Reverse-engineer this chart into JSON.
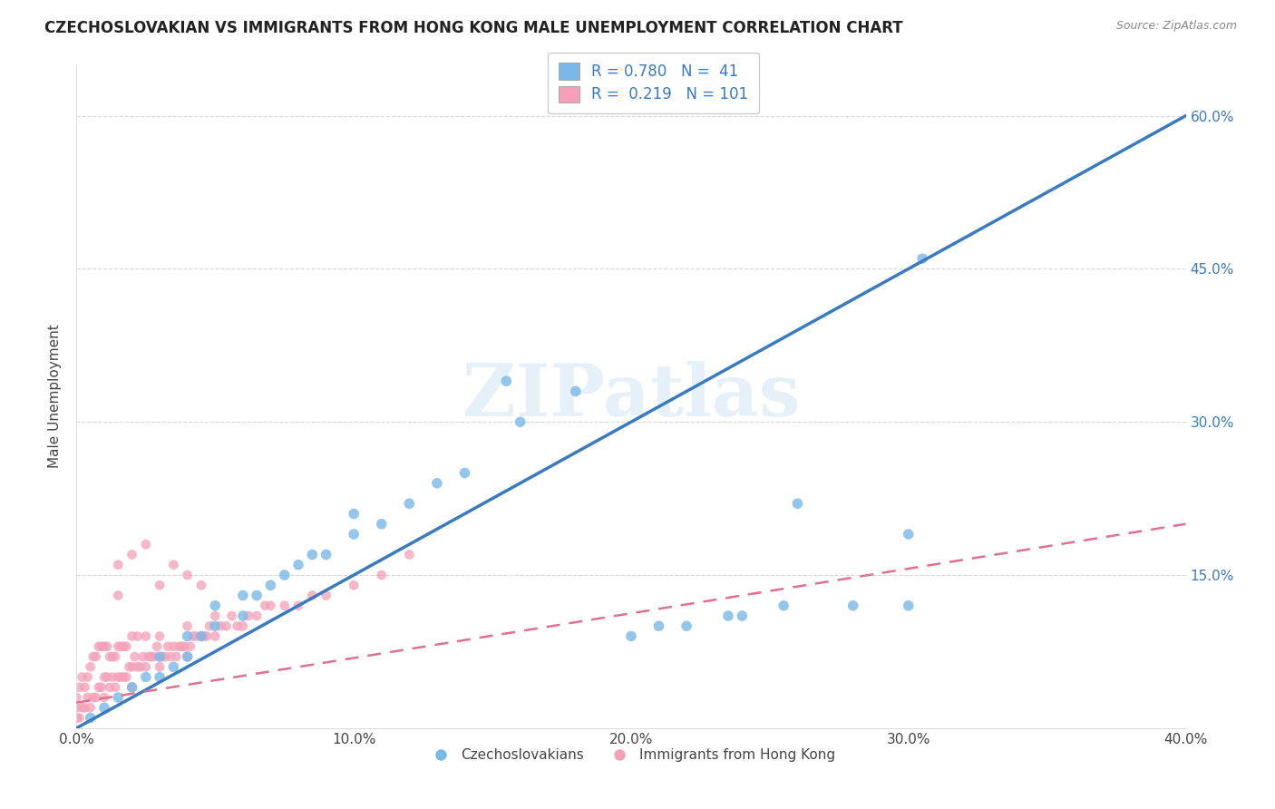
{
  "title": "CZECHOSLOVAKIAN VS IMMIGRANTS FROM HONG KONG MALE UNEMPLOYMENT CORRELATION CHART",
  "source_text": "Source: ZipAtlas.com",
  "ylabel": "Male Unemployment",
  "xlim": [
    0.0,
    0.4
  ],
  "ylim": [
    0.0,
    0.65
  ],
  "xtick_labels": [
    "0.0%",
    "10.0%",
    "20.0%",
    "30.0%",
    "40.0%"
  ],
  "xtick_vals": [
    0.0,
    0.1,
    0.2,
    0.3,
    0.4
  ],
  "ytick_labels": [
    "15.0%",
    "30.0%",
    "45.0%",
    "60.0%"
  ],
  "ytick_vals": [
    0.15,
    0.3,
    0.45,
    0.6
  ],
  "blue_color": "#7ab8e8",
  "pink_color": "#f4a0b8",
  "blue_line_color": "#3a7abf",
  "pink_line_color": "#e07090",
  "watermark": "ZIPatlas",
  "blue_line": [
    0.0,
    0.0,
    0.4,
    0.6
  ],
  "pink_line": [
    0.0,
    0.025,
    0.4,
    0.2
  ],
  "blue_scatter_x": [
    0.005,
    0.01,
    0.015,
    0.02,
    0.025,
    0.03,
    0.03,
    0.035,
    0.04,
    0.04,
    0.045,
    0.05,
    0.05,
    0.06,
    0.06,
    0.065,
    0.07,
    0.075,
    0.08,
    0.085,
    0.09,
    0.1,
    0.1,
    0.11,
    0.12,
    0.13,
    0.14,
    0.155,
    0.16,
    0.18,
    0.2,
    0.21,
    0.22,
    0.235,
    0.24,
    0.255,
    0.26,
    0.28,
    0.3,
    0.305,
    0.3
  ],
  "blue_scatter_y": [
    0.01,
    0.02,
    0.03,
    0.04,
    0.05,
    0.05,
    0.07,
    0.06,
    0.07,
    0.09,
    0.09,
    0.1,
    0.12,
    0.11,
    0.13,
    0.13,
    0.14,
    0.15,
    0.16,
    0.17,
    0.17,
    0.19,
    0.21,
    0.2,
    0.22,
    0.24,
    0.25,
    0.34,
    0.3,
    0.33,
    0.09,
    0.1,
    0.1,
    0.11,
    0.11,
    0.12,
    0.22,
    0.12,
    0.12,
    0.46,
    0.19
  ],
  "pink_scatter_x": [
    0.0,
    0.0,
    0.0,
    0.001,
    0.001,
    0.002,
    0.002,
    0.003,
    0.003,
    0.004,
    0.004,
    0.005,
    0.005,
    0.006,
    0.006,
    0.007,
    0.007,
    0.008,
    0.008,
    0.009,
    0.009,
    0.01,
    0.01,
    0.01,
    0.011,
    0.011,
    0.012,
    0.012,
    0.013,
    0.013,
    0.014,
    0.014,
    0.015,
    0.015,
    0.016,
    0.016,
    0.017,
    0.017,
    0.018,
    0.018,
    0.019,
    0.02,
    0.02,
    0.02,
    0.021,
    0.022,
    0.022,
    0.023,
    0.024,
    0.025,
    0.025,
    0.026,
    0.027,
    0.028,
    0.029,
    0.03,
    0.03,
    0.031,
    0.032,
    0.033,
    0.034,
    0.035,
    0.036,
    0.037,
    0.038,
    0.039,
    0.04,
    0.04,
    0.041,
    0.042,
    0.043,
    0.045,
    0.046,
    0.047,
    0.048,
    0.05,
    0.05,
    0.052,
    0.054,
    0.056,
    0.058,
    0.06,
    0.062,
    0.065,
    0.068,
    0.07,
    0.075,
    0.08,
    0.085,
    0.09,
    0.1,
    0.11,
    0.12,
    0.02,
    0.015,
    0.025,
    0.03,
    0.035,
    0.04,
    0.045,
    0.015
  ],
  "pink_scatter_y": [
    0.01,
    0.02,
    0.03,
    0.01,
    0.04,
    0.02,
    0.05,
    0.02,
    0.04,
    0.03,
    0.05,
    0.02,
    0.06,
    0.03,
    0.07,
    0.03,
    0.07,
    0.04,
    0.08,
    0.04,
    0.08,
    0.03,
    0.05,
    0.08,
    0.05,
    0.08,
    0.04,
    0.07,
    0.05,
    0.07,
    0.04,
    0.07,
    0.05,
    0.08,
    0.05,
    0.08,
    0.05,
    0.08,
    0.05,
    0.08,
    0.06,
    0.04,
    0.06,
    0.09,
    0.07,
    0.06,
    0.09,
    0.06,
    0.07,
    0.06,
    0.09,
    0.07,
    0.07,
    0.07,
    0.08,
    0.06,
    0.09,
    0.07,
    0.07,
    0.08,
    0.07,
    0.08,
    0.07,
    0.08,
    0.08,
    0.08,
    0.07,
    0.1,
    0.08,
    0.09,
    0.09,
    0.09,
    0.09,
    0.09,
    0.1,
    0.09,
    0.11,
    0.1,
    0.1,
    0.11,
    0.1,
    0.1,
    0.11,
    0.11,
    0.12,
    0.12,
    0.12,
    0.12,
    0.13,
    0.13,
    0.14,
    0.15,
    0.17,
    0.17,
    0.16,
    0.18,
    0.14,
    0.16,
    0.15,
    0.14,
    0.13
  ]
}
